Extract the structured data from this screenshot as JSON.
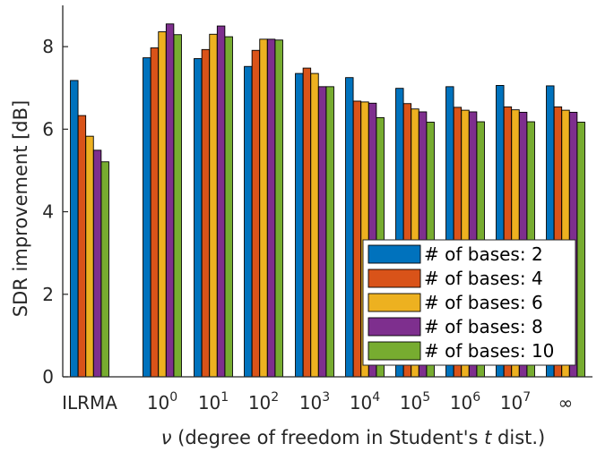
{
  "chart_data": {
    "type": "bar",
    "xlabel": "ν (degree of freedom in Student's t dist.)",
    "ylabel": "SDR improvement [dB]",
    "ylim": [
      0,
      9
    ],
    "yticks": [
      0,
      2,
      4,
      6,
      8
    ],
    "grid": false,
    "legend_position": "bottom-right",
    "categories": [
      {
        "base": "ILRMA",
        "exp": ""
      },
      {
        "base": "10",
        "exp": "0"
      },
      {
        "base": "10",
        "exp": "1"
      },
      {
        "base": "10",
        "exp": "2"
      },
      {
        "base": "10",
        "exp": "3"
      },
      {
        "base": "10",
        "exp": "4"
      },
      {
        "base": "10",
        "exp": "5"
      },
      {
        "base": "10",
        "exp": "6"
      },
      {
        "base": "10",
        "exp": "7"
      },
      {
        "base": "∞",
        "exp": ""
      }
    ],
    "series": [
      {
        "name": "# of bases: 2",
        "color": "#0072BD",
        "values": [
          7.18,
          7.73,
          7.71,
          7.52,
          7.35,
          7.25,
          6.99,
          7.03,
          7.06,
          7.05
        ]
      },
      {
        "name": "# of bases: 4",
        "color": "#D95319",
        "values": [
          6.33,
          7.97,
          7.93,
          7.91,
          7.48,
          6.68,
          6.62,
          6.53,
          6.54,
          6.54
        ]
      },
      {
        "name": "# of bases: 6",
        "color": "#EDB120",
        "values": [
          5.83,
          8.36,
          8.3,
          8.18,
          7.35,
          6.66,
          6.49,
          6.46,
          6.47,
          6.46
        ]
      },
      {
        "name": "# of bases: 8",
        "color": "#7E2F8E",
        "values": [
          5.49,
          8.55,
          8.5,
          8.18,
          7.03,
          6.63,
          6.42,
          6.42,
          6.41,
          6.41
        ]
      },
      {
        "name": "# of bases: 10",
        "color": "#77AC30",
        "values": [
          5.21,
          8.29,
          8.24,
          8.16,
          7.03,
          6.28,
          6.17,
          6.18,
          6.18,
          6.17
        ]
      }
    ]
  }
}
